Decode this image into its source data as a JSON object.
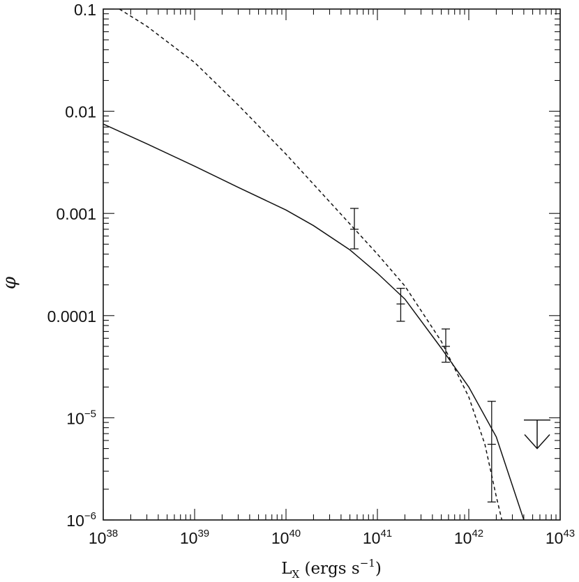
{
  "chart_data": {
    "type": "scatter",
    "title": "",
    "xlabel": {
      "main": "L",
      "sub": "X",
      "rest": " (ergs s",
      "sup": "−1",
      "close": ")"
    },
    "ylabel": "φ",
    "xscale": "log",
    "yscale": "log",
    "xlim": [
      1e+38,
      1e+43
    ],
    "ylim": [
      1e-06,
      0.1
    ],
    "grid": false,
    "x_ticks": [
      {
        "value": 1e+38,
        "base": "10",
        "exp": "38"
      },
      {
        "value": 1e+39,
        "base": "10",
        "exp": "39"
      },
      {
        "value": 1e+40,
        "base": "10",
        "exp": "40"
      },
      {
        "value": 1e+41,
        "base": "10",
        "exp": "41"
      },
      {
        "value": 1e+42,
        "base": "10",
        "exp": "42"
      },
      {
        "value": 1e+43,
        "base": "10",
        "exp": "43"
      }
    ],
    "y_ticks": [
      {
        "value": 0.1,
        "base": "0.1",
        "exp": ""
      },
      {
        "value": 0.01,
        "base": "0.01",
        "exp": ""
      },
      {
        "value": 0.001,
        "base": "0.001",
        "exp": ""
      },
      {
        "value": 0.0001,
        "base": "0.0001",
        "exp": ""
      },
      {
        "value": 1e-05,
        "base": "10",
        "exp": "−5"
      },
      {
        "value": 1e-06,
        "base": "10",
        "exp": "−6"
      }
    ],
    "points": [
      {
        "x": 5.6e+40,
        "y": 0.0007,
        "ylow": 0.00045,
        "yhigh": 0.00112
      },
      {
        "x": 1.8e+41,
        "y": 0.00013,
        "ylow": 8.8e-05,
        "yhigh": 0.000185
      },
      {
        "x": 5.6e+41,
        "y": 5e-05,
        "ylow": 3.5e-05,
        "yhigh": 7.4e-05
      },
      {
        "x": 1.78e+42,
        "y": 5.5e-06,
        "ylow": 1.5e-06,
        "yhigh": 1.45e-05
      }
    ],
    "upper_limits": [
      {
        "x": 5.6e+42,
        "y": 9.5e-06,
        "arrow_to": 5e-06
      }
    ],
    "curves": [
      {
        "style": "solid",
        "x": [
          1e+38,
          3e+38,
          1e+39,
          3e+39,
          1e+40,
          2e+40,
          5e+40,
          1e+41,
          2e+41,
          5e+41,
          1e+42,
          2e+42,
          4e+42
        ],
        "y": [
          0.0075,
          0.0048,
          0.0029,
          0.0018,
          0.00108,
          0.00076,
          0.00044,
          0.00026,
          0.000145,
          4.8e-05,
          2e-05,
          6.5e-06,
          1e-06
        ]
      },
      {
        "style": "dashed",
        "x": [
          1.5e+38,
          3e+38,
          1e+39,
          3e+39,
          1e+40,
          3e+40,
          1e+41,
          2e+41,
          5e+41,
          1e+42,
          1.5e+42,
          2e+42,
          2.3e+42
        ],
        "y": [
          0.1,
          0.068,
          0.03,
          0.0115,
          0.0038,
          0.0013,
          0.0004,
          0.000195,
          5.6e-05,
          1.6e-05,
          5.5e-06,
          1.7e-06,
          1e-06
        ]
      }
    ]
  }
}
